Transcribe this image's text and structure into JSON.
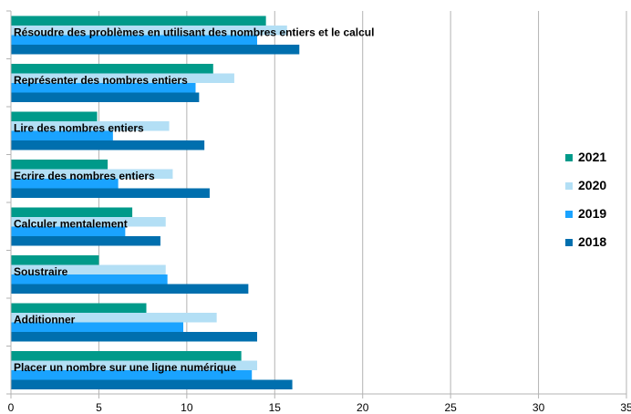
{
  "chart_data": {
    "type": "bar",
    "orientation": "horizontal",
    "categories": [
      "Résoudre des problèmes en utilisant des nombres entiers et le calcul",
      "Représenter des nombres entiers",
      "Lire des nombres entiers",
      "Ecrire des nombres entiers",
      "Calculer mentalement",
      "Soustraire",
      "Additionner",
      "Placer un nombre sur une ligne numérique"
    ],
    "series": [
      {
        "name": "2021",
        "color": "#009a8a",
        "values": [
          14.5,
          11.5,
          4.9,
          5.5,
          6.9,
          5.0,
          7.7,
          13.1
        ]
      },
      {
        "name": "2020",
        "color": "#b3dff5",
        "values": [
          15.7,
          12.7,
          9.0,
          9.2,
          8.8,
          8.8,
          11.7,
          14.0
        ]
      },
      {
        "name": "2019",
        "color": "#1aa3ff",
        "values": [
          14.0,
          10.5,
          5.8,
          6.1,
          6.5,
          8.9,
          9.8,
          13.7
        ]
      },
      {
        "name": "2018",
        "color": "#006fae",
        "values": [
          16.4,
          10.7,
          11.0,
          11.3,
          8.5,
          13.5,
          14.0,
          16.0
        ]
      }
    ],
    "xlim": [
      0,
      35
    ],
    "xticks": [
      "0",
      "5",
      "10",
      "15",
      "20",
      "25",
      "30",
      "35"
    ],
    "grid": true,
    "legend_position": "right",
    "legend_order": [
      "2021",
      "2020",
      "2019",
      "2018"
    ],
    "title": "",
    "xlabel": "",
    "ylabel": ""
  }
}
